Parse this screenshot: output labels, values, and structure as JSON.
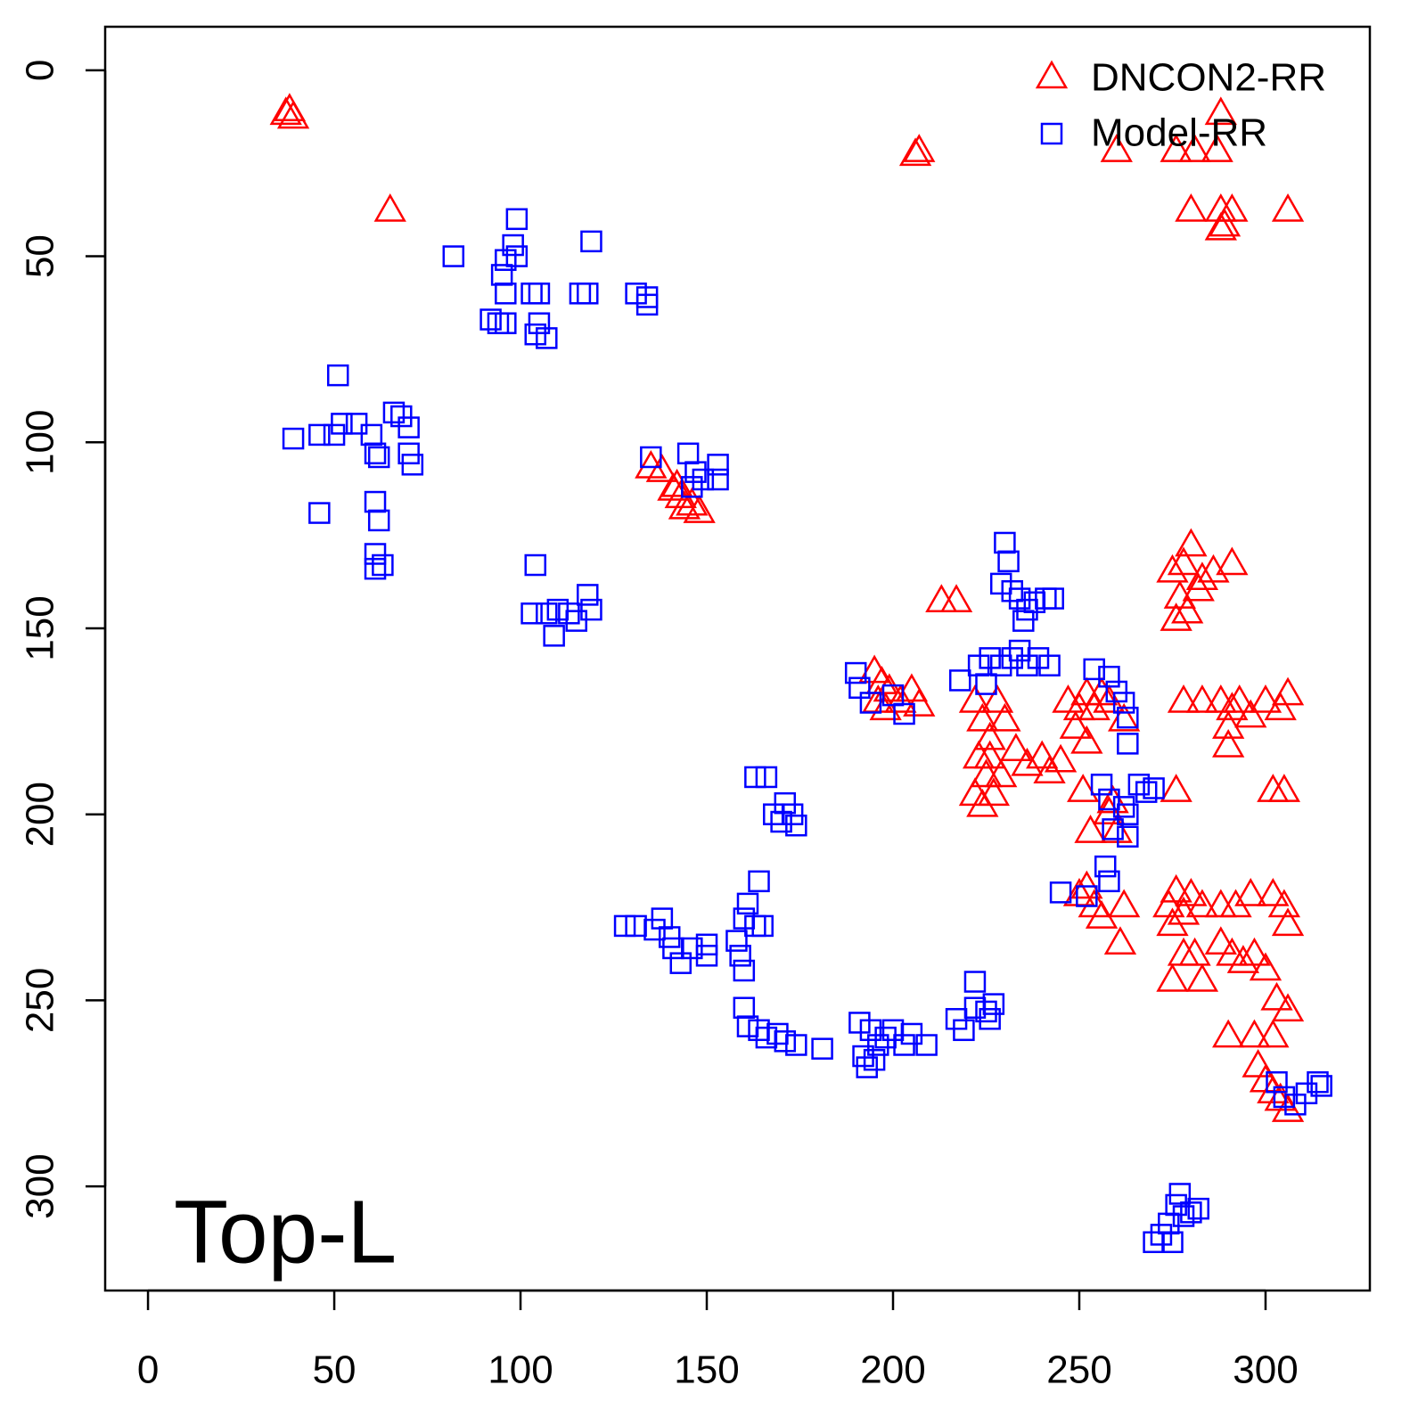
{
  "chart_data": {
    "type": "scatter",
    "annotation": "Top-L",
    "legend": "top-right",
    "xlim": [
      -11.5,
      328
    ],
    "ylim": [
      328,
      -11.7
    ],
    "xticks": [
      0,
      50,
      100,
      150,
      200,
      250,
      300
    ],
    "yticks": [
      0,
      50,
      100,
      150,
      200,
      250,
      300
    ],
    "series": [
      {
        "name": "DNCON2-RR",
        "color": "#ff0000",
        "marker": "triangle",
        "x": [
          37,
          38,
          39,
          65,
          206,
          207,
          260,
          276,
          281,
          287,
          288,
          280,
          288,
          291,
          306,
          288,
          289,
          135,
          138,
          141,
          143,
          144,
          146,
          148,
          142,
          213,
          217,
          195,
          197,
          199,
          196,
          202,
          205,
          207,
          198,
          222,
          224,
          226,
          228,
          223,
          225,
          227,
          222,
          224,
          229,
          230,
          226,
          233,
          236,
          240,
          242,
          245,
          247,
          250,
          252,
          254,
          256,
          258,
          262,
          249,
          252,
          251,
          259,
          258,
          260,
          253,
          252,
          254,
          256,
          250,
          262,
          261,
          275,
          278,
          280,
          283,
          277,
          279,
          282,
          276,
          286,
          291,
          278,
          283,
          288,
          291,
          293,
          296,
          300,
          304,
          306,
          290,
          290,
          276,
          302,
          305,
          274,
          276,
          278,
          280,
          283,
          275,
          292,
          296,
          302,
          305,
          306,
          288,
          278,
          281,
          275,
          283,
          288,
          291,
          294,
          297,
          300,
          303,
          306,
          290,
          297,
          302,
          298,
          300,
          302,
          304,
          306
        ],
        "y": [
          12,
          11,
          13,
          38,
          23,
          22,
          22,
          22,
          22,
          22,
          12,
          38,
          38,
          38,
          38,
          43,
          42,
          107,
          108,
          113,
          115,
          118,
          117,
          119,
          112,
          143,
          143,
          162,
          165,
          167,
          170,
          170,
          167,
          171,
          172,
          170,
          175,
          180,
          170,
          185,
          190,
          195,
          195,
          198,
          190,
          175,
          185,
          183,
          187,
          185,
          189,
          186,
          170,
          172,
          168,
          172,
          168,
          170,
          175,
          177,
          181,
          194,
          197,
          200,
          205,
          205,
          220,
          225,
          228,
          222,
          225,
          235,
          135,
          133,
          128,
          137,
          142,
          146,
          140,
          148,
          135,
          133,
          170,
          170,
          170,
          172,
          170,
          174,
          170,
          172,
          168,
          177,
          182,
          194,
          194,
          194,
          225,
          221,
          227,
          222,
          225,
          230,
          225,
          222,
          222,
          225,
          230,
          225,
          238,
          238,
          245,
          245,
          235,
          238,
          240,
          238,
          242,
          250,
          253,
          260,
          260,
          260,
          268,
          272,
          275,
          277,
          280
        ]
      },
      {
        "name": "Model-RR",
        "color": "#0000ff",
        "marker": "square",
        "x": [
          99,
          98,
          99,
          82,
          95,
          96,
          103,
          105,
          116,
          118,
          119,
          131,
          134,
          134,
          92,
          94,
          96,
          105,
          107,
          104,
          96,
          51,
          39,
          46,
          50,
          52,
          56,
          60,
          61,
          66,
          68,
          70,
          62,
          70,
          71,
          46,
          61,
          62,
          61,
          61,
          63,
          135,
          145,
          147,
          149,
          153,
          153,
          146,
          104,
          103,
          107,
          109,
          110,
          113,
          118,
          119,
          115,
          190,
          191,
          194,
          200,
          203,
          218,
          223,
          226,
          229,
          232,
          234,
          236,
          239,
          242,
          225,
          230,
          231,
          229,
          232,
          234,
          236,
          238,
          241,
          243,
          235,
          254,
          258,
          260,
          262,
          263,
          263,
          256,
          258,
          262,
          259,
          263,
          266,
          268,
          270,
          263,
          257,
          258,
          245,
          252,
          163,
          166,
          168,
          171,
          173,
          174,
          170,
          128,
          131,
          136,
          138,
          140,
          141,
          143,
          146,
          150,
          150,
          158,
          159,
          160,
          161,
          164,
          163,
          165,
          160,
          160,
          161,
          164,
          166,
          169,
          171,
          174,
          181,
          191,
          194,
          196,
          198,
          200,
          203,
          205,
          209,
          193,
          195,
          192,
          217,
          219,
          222,
          222,
          225,
          227,
          226,
          303,
          305,
          308,
          311,
          314,
          315,
          270,
          272,
          274,
          276,
          277,
          278,
          280,
          282,
          275
        ],
        "y": [
          40,
          47,
          50,
          50,
          55,
          60,
          60,
          60,
          60,
          60,
          46,
          60,
          61,
          63,
          67,
          68,
          68,
          68,
          72,
          71,
          51,
          82,
          99,
          98,
          98,
          95,
          95,
          98,
          103,
          92,
          93,
          96,
          104,
          103,
          106,
          119,
          116,
          121,
          130,
          134,
          133,
          104,
          103,
          108,
          110,
          106,
          110,
          112,
          133,
          146,
          146,
          152,
          145,
          146,
          141,
          145,
          148,
          162,
          166,
          170,
          168,
          173,
          164,
          160,
          158,
          160,
          158,
          156,
          160,
          158,
          160,
          165,
          127,
          132,
          138,
          140,
          142,
          145,
          143,
          142,
          142,
          148,
          161,
          163,
          167,
          170,
          174,
          181,
          192,
          196,
          198,
          204,
          200,
          192,
          194,
          193,
          206,
          214,
          218,
          221,
          222,
          190,
          190,
          200,
          197,
          200,
          203,
          202,
          230,
          230,
          231,
          228,
          233,
          236,
          240,
          236,
          235,
          238,
          234,
          238,
          228,
          224,
          218,
          230,
          230,
          242,
          252,
          257,
          258,
          260,
          259,
          261,
          262,
          263,
          256,
          258,
          262,
          260,
          258,
          262,
          259,
          262,
          268,
          266,
          265,
          255,
          258,
          245,
          252,
          253,
          251,
          255,
          272,
          276,
          278,
          275,
          272,
          273,
          315,
          313,
          310,
          305,
          302,
          308,
          307,
          306,
          315
        ]
      }
    ]
  }
}
